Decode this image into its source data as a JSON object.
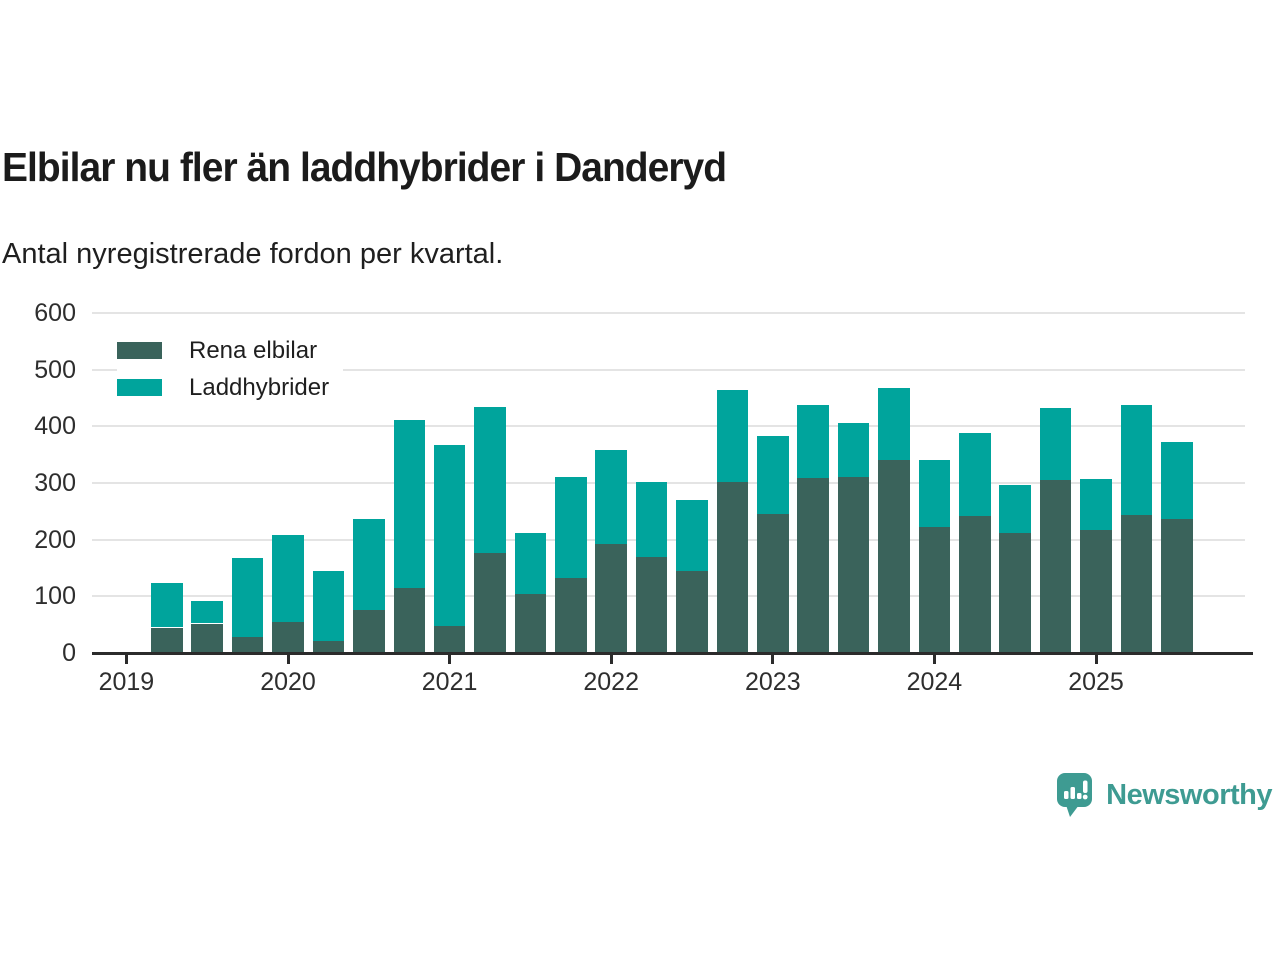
{
  "header": {
    "title": "Elbilar nu fler än laddhybrider i Danderyd",
    "subtitle": "Antal nyregistrerade fordon per kvartal."
  },
  "footer": {
    "brand": "Newsworthy"
  },
  "colors": {
    "elbilar": "#3A635B",
    "laddhybrider": "#00A49C",
    "brand_teal": "#3E9B92",
    "axis": "#2b2b2b",
    "gridline": "#e4e4e4"
  },
  "chart_data": {
    "type": "bar",
    "stacked": true,
    "title": "Elbilar nu fler än laddhybrider i Danderyd",
    "xlabel": "",
    "ylabel": "",
    "ylim": [
      0,
      600
    ],
    "y_ticks": [
      0,
      100,
      200,
      300,
      400,
      500,
      600
    ],
    "x_ticks": [
      "2019",
      "2020",
      "2021",
      "2022",
      "2023",
      "2024",
      "2025"
    ],
    "grid": true,
    "legend_position": "top-left",
    "categories": [
      "2019 Q2",
      "2019 Q3",
      "2019 Q4",
      "2020 Q1",
      "2020 Q2",
      "2020 Q3",
      "2020 Q4",
      "2021 Q1",
      "2021 Q2",
      "2021 Q3",
      "2021 Q4",
      "2022 Q1",
      "2022 Q2",
      "2022 Q3",
      "2022 Q4",
      "2023 Q1",
      "2023 Q2",
      "2023 Q3",
      "2023 Q4",
      "2024 Q1",
      "2024 Q2",
      "2024 Q3",
      "2024 Q4",
      "2025 Q1",
      "2025 Q2",
      "2025 Q3"
    ],
    "series": [
      {
        "name": "Rena elbilar",
        "color": "#3A635B",
        "values": [
          45,
          52,
          28,
          55,
          21,
          76,
          115,
          47,
          177,
          104,
          133,
          192,
          170,
          145,
          301,
          246,
          309,
          310,
          341,
          223,
          242,
          212,
          306,
          218,
          243,
          236
        ]
      },
      {
        "name": "Laddhybrider",
        "color": "#00A49C",
        "values": [
          78,
          39,
          140,
          153,
          123,
          161,
          297,
          321,
          258,
          107,
          178,
          167,
          132,
          125,
          163,
          137,
          129,
          96,
          127,
          118,
          147,
          85,
          127,
          90,
          195,
          137
        ]
      }
    ]
  }
}
